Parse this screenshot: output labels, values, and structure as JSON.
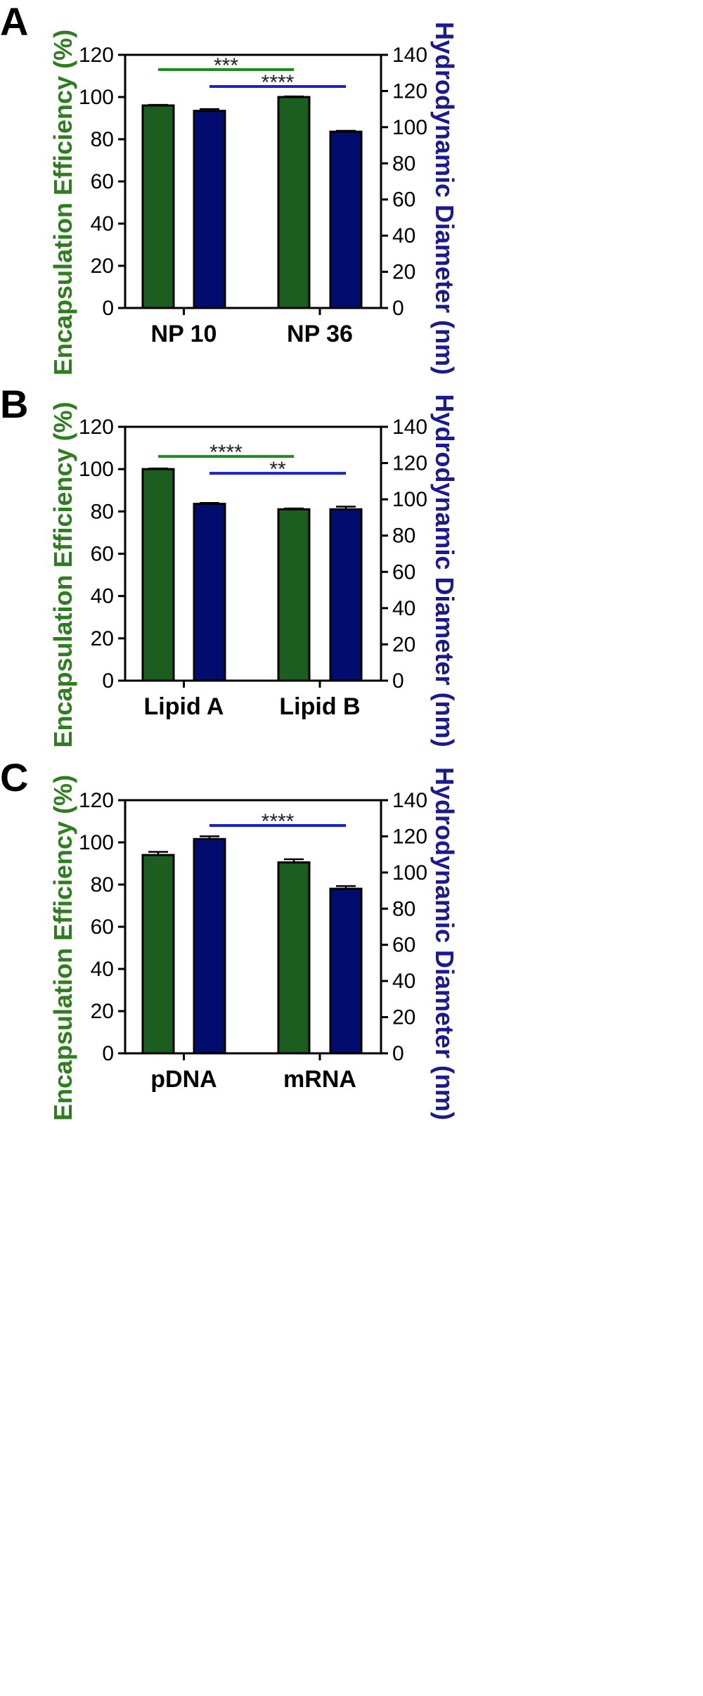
{
  "chart_data": [
    {
      "type": "bar",
      "panel": "A",
      "categories": [
        "NP 10",
        "NP 36"
      ],
      "series": [
        {
          "name": "Encapsulation Efficiency",
          "axis": "left",
          "color": "#1b5e20",
          "values": [
            96,
            100
          ],
          "errors": [
            0.3,
            0.3
          ]
        },
        {
          "name": "Hydrodynamic Diameter",
          "axis": "right",
          "color": "#020c6e",
          "values": [
            109,
            97.5
          ],
          "errors": [
            1.0,
            0.5
          ]
        }
      ],
      "left_axis": {
        "label": "Encapsulation Efficiency  (%)",
        "ylim": [
          0,
          120
        ],
        "ticks": [
          0,
          20,
          40,
          60,
          80,
          100,
          120
        ],
        "color": "#2e7d1f"
      },
      "right_axis": {
        "label": "Hydrodynamic  Diameter (nm)",
        "ylim": [
          0,
          140
        ],
        "ticks": [
          0,
          20,
          40,
          60,
          80,
          100,
          120,
          140
        ],
        "color": "#1a1a8c"
      },
      "significance": [
        {
          "label": "***",
          "axis": "left",
          "y": 113,
          "color": "#1f8a1f",
          "from": 0,
          "to": 1
        },
        {
          "label": "****",
          "axis": "left",
          "y": 105,
          "color": "#1a23c9",
          "from": 0,
          "to": 1
        }
      ]
    },
    {
      "type": "bar",
      "panel": "B",
      "categories": [
        "Lipid A",
        "Lipid B"
      ],
      "series": [
        {
          "name": "Encapsulation Efficiency",
          "axis": "left",
          "color": "#1b5e20",
          "values": [
            100,
            81
          ],
          "errors": [
            0.3,
            0.4
          ]
        },
        {
          "name": "Hydrodynamic Diameter",
          "axis": "right",
          "color": "#020c6e",
          "values": [
            97.5,
            94.5
          ],
          "errors": [
            0.5,
            1.5
          ]
        }
      ],
      "left_axis": {
        "label": "Encapsulation Efficiency  (%)",
        "ylim": [
          0,
          120
        ],
        "ticks": [
          0,
          20,
          40,
          60,
          80,
          100,
          120
        ],
        "color": "#2e7d1f"
      },
      "right_axis": {
        "label": "Hydrodynamic  Diameter (nm)",
        "ylim": [
          0,
          140
        ],
        "ticks": [
          0,
          20,
          40,
          60,
          80,
          100,
          120,
          140
        ],
        "color": "#1a1a8c"
      },
      "significance": [
        {
          "label": "****",
          "axis": "left",
          "y": 106,
          "color": "#1f8a1f",
          "from": 0,
          "to": 1
        },
        {
          "label": "**",
          "axis": "left",
          "y": 98,
          "color": "#1a23c9",
          "from": 0,
          "to": 1
        }
      ]
    },
    {
      "type": "bar",
      "panel": "C",
      "categories": [
        "pDNA",
        "mRNA"
      ],
      "series": [
        {
          "name": "Encapsulation Efficiency",
          "axis": "left",
          "color": "#1b5e20",
          "values": [
            94,
            90.5
          ],
          "errors": [
            1.5,
            1.5
          ]
        },
        {
          "name": "Hydrodynamic Diameter",
          "axis": "right",
          "color": "#020c6e",
          "values": [
            118.5,
            91
          ],
          "errors": [
            1.5,
            1.5
          ]
        }
      ],
      "left_axis": {
        "label": "Encapsulation Efficiency  (%)",
        "ylim": [
          0,
          120
        ],
        "ticks": [
          0,
          20,
          40,
          60,
          80,
          100,
          120
        ],
        "color": "#2e7d1f"
      },
      "right_axis": {
        "label": "Hydrodynamic  Diameter (nm)",
        "ylim": [
          0,
          140
        ],
        "ticks": [
          0,
          20,
          40,
          60,
          80,
          100,
          120,
          140
        ],
        "color": "#1a1a8c"
      },
      "significance": [
        {
          "label": "****",
          "axis": "left",
          "y": 108,
          "color": "#1a23c9",
          "from": 0,
          "to": 1
        }
      ]
    }
  ]
}
